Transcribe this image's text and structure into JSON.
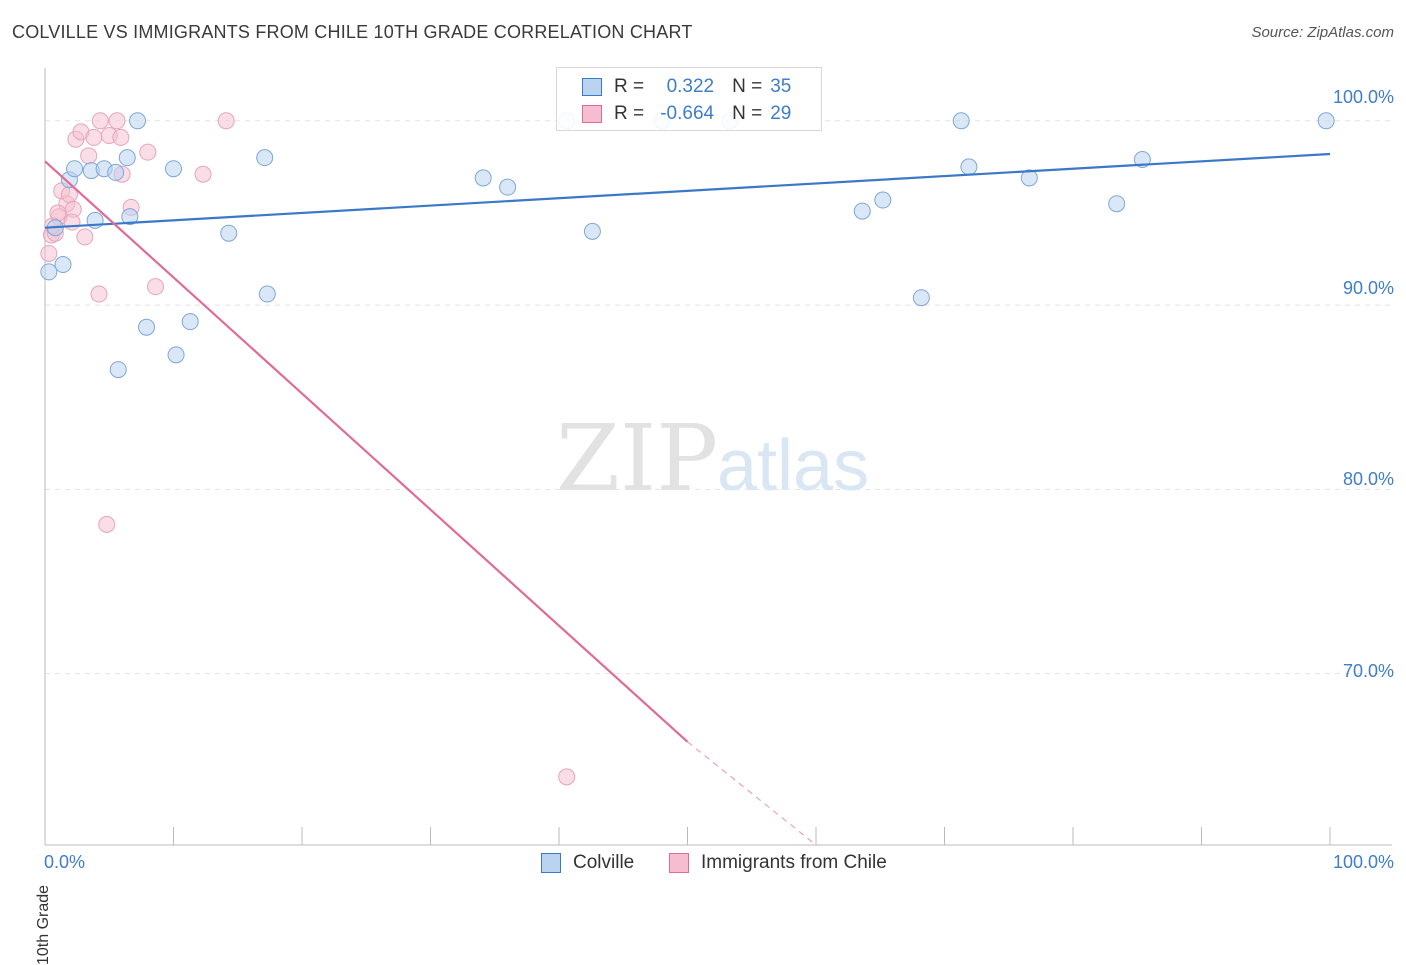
{
  "title": "COLVILLE VS IMMIGRANTS FROM CHILE 10TH GRADE CORRELATION CHART",
  "source": "Source: ZipAtlas.com",
  "watermark": {
    "zip": "ZIP",
    "atlas": "atlas"
  },
  "legend_top": {
    "rows": [
      {
        "r_label": "R =",
        "r_value": "0.322",
        "n_label": "N =",
        "n_value": "35"
      },
      {
        "r_label": "R =",
        "r_value": "-0.664",
        "n_label": "N =",
        "n_value": "29"
      }
    ]
  },
  "bottom_legend": {
    "colville": "Colville",
    "chile": "Immigrants from Chile"
  },
  "axes": {
    "x_min_label": "0.0%",
    "x_max_label": "100.0%",
    "y_ticks": [
      "100.0%",
      "90.0%",
      "80.0%",
      "70.0%"
    ],
    "ylabel": "10th Grade"
  },
  "colors": {
    "blue": "#3b78c8",
    "blue_fill": "#b9d3f0",
    "pink": "#e06a98",
    "pink_fill": "#f6bdd0",
    "tick_text": "#3f7dc9"
  },
  "chart_data": {
    "type": "scatter",
    "title": "COLVILLE VS IMMIGRANTS FROM CHILE 10TH GRADE CORRELATION CHART",
    "xlabel": "",
    "ylabel": "10th Grade",
    "xlim": [
      0,
      100
    ],
    "ylim": [
      60.7,
      103.3
    ],
    "y_gridlines": [
      100,
      90,
      80,
      70
    ],
    "series": [
      {
        "name": "Colville",
        "color": "#3b78c8",
        "r": 0.322,
        "n": 35,
        "trend": {
          "x0": 0,
          "y0": 94.2,
          "x1": 100,
          "y1": 98.2
        },
        "points": [
          [
            0.3,
            91.8
          ],
          [
            0.8,
            94.2
          ],
          [
            1.4,
            92.2
          ],
          [
            1.9,
            96.8
          ],
          [
            2.3,
            97.4
          ],
          [
            3.6,
            97.3
          ],
          [
            3.9,
            94.6
          ],
          [
            4.6,
            97.4
          ],
          [
            5.5,
            97.2
          ],
          [
            5.7,
            86.5
          ],
          [
            6.4,
            98.0
          ],
          [
            6.6,
            94.8
          ],
          [
            7.2,
            100.0
          ],
          [
            7.9,
            88.8
          ],
          [
            10.2,
            87.3
          ],
          [
            10.0,
            97.4
          ],
          [
            11.3,
            89.1
          ],
          [
            14.3,
            93.9
          ],
          [
            17.1,
            98.0
          ],
          [
            17.3,
            90.6
          ],
          [
            34.1,
            96.9
          ],
          [
            36.0,
            96.4
          ],
          [
            40.6,
            100.0
          ],
          [
            42.6,
            94.0
          ],
          [
            48.0,
            100.0
          ],
          [
            53.3,
            100.0
          ],
          [
            63.6,
            95.1
          ],
          [
            65.2,
            95.7
          ],
          [
            68.2,
            90.4
          ],
          [
            71.3,
            100.0
          ],
          [
            71.9,
            97.5
          ],
          [
            76.6,
            96.9
          ],
          [
            83.4,
            95.5
          ],
          [
            85.4,
            97.9
          ],
          [
            99.7,
            100.0
          ]
        ]
      },
      {
        "name": "Immigrants from Chile",
        "color": "#e06a98",
        "r": -0.664,
        "n": 29,
        "trend": {
          "x0": 0,
          "y0": 97.8,
          "x1": 50,
          "y1": 66.3,
          "dash_x1": 60,
          "dash_y1": 60.7
        },
        "points": [
          [
            0.3,
            92.8
          ],
          [
            0.5,
            93.8
          ],
          [
            0.8,
            93.9
          ],
          [
            1.1,
            94.8
          ],
          [
            1.3,
            96.2
          ],
          [
            1.7,
            95.5
          ],
          [
            1.9,
            96.0
          ],
          [
            2.2,
            95.2
          ],
          [
            2.1,
            94.5
          ],
          [
            2.4,
            99.0
          ],
          [
            2.8,
            99.4
          ],
          [
            3.1,
            93.7
          ],
          [
            3.4,
            98.1
          ],
          [
            3.8,
            99.1
          ],
          [
            4.2,
            90.6
          ],
          [
            4.3,
            100.0
          ],
          [
            5.0,
            99.2
          ],
          [
            5.6,
            100.0
          ],
          [
            5.9,
            99.1
          ],
          [
            6.0,
            97.1
          ],
          [
            6.7,
            95.3
          ],
          [
            8.0,
            98.3
          ],
          [
            8.6,
            91.0
          ],
          [
            12.3,
            97.1
          ],
          [
            14.1,
            100.0
          ],
          [
            40.6,
            64.4
          ],
          [
            4.8,
            78.1
          ],
          [
            1.0,
            95.0
          ],
          [
            0.6,
            94.3
          ]
        ]
      }
    ]
  }
}
